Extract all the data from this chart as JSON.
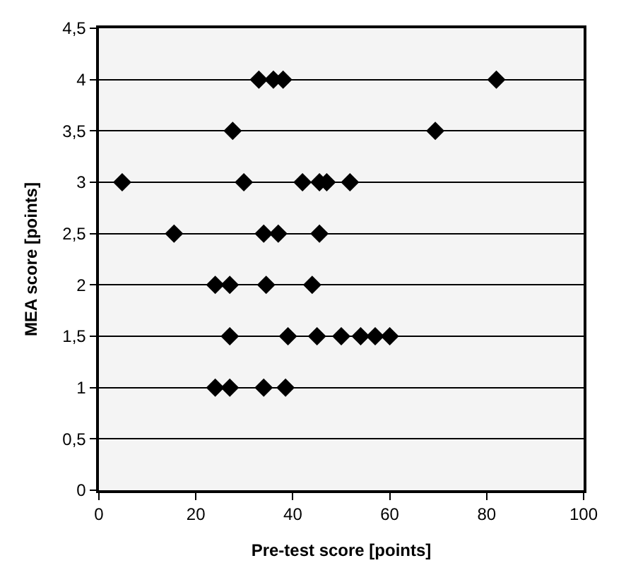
{
  "chart_data": {
    "type": "scatter",
    "xlabel": "Pre-test score [points]",
    "ylabel": "MEA score [points]",
    "series": [
      {
        "color": "#000000",
        "x": [
          33,
          36,
          38,
          82,
          27.6,
          69.4,
          4.8,
          29.9,
          42,
          45.5,
          47,
          51.8,
          15.5,
          34,
          37,
          45.5,
          24,
          27,
          34.5,
          44,
          27,
          39,
          45,
          50,
          54,
          57,
          60,
          24,
          27,
          34,
          38.5
        ],
        "values": [
          4,
          4,
          4,
          4,
          3.5,
          3.5,
          3,
          3,
          3,
          3,
          3,
          3,
          2.5,
          2.5,
          2.5,
          2.5,
          2,
          2,
          2,
          2,
          1.5,
          1.5,
          1.5,
          1.5,
          1.5,
          1.5,
          1.5,
          1,
          1,
          1,
          1
        ]
      }
    ],
    "xlim": [
      0,
      100
    ],
    "xticks": [
      0,
      20,
      40,
      60,
      80,
      100
    ],
    "ylim": [
      0,
      4.5
    ],
    "yticks": [
      {
        "value": 0,
        "label": "0"
      },
      {
        "value": 0.5,
        "label": "0,5"
      },
      {
        "value": 1,
        "label": "1"
      },
      {
        "value": 1.5,
        "label": "1,5"
      },
      {
        "value": 2,
        "label": "2"
      },
      {
        "value": 2.5,
        "label": "2,5"
      },
      {
        "value": 3,
        "label": "3"
      },
      {
        "value": 3.5,
        "label": "3,5"
      },
      {
        "value": 4,
        "label": "4"
      },
      {
        "value": 4.5,
        "label": "4,5"
      }
    ],
    "grid": "y",
    "marker": "diamond",
    "legend": false
  }
}
